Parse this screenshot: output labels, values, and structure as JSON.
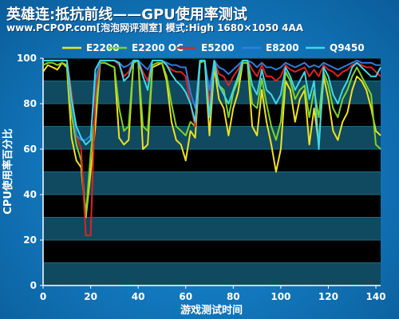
{
  "header": {
    "title": "英雄连:抵抗前线——GPU使用率测试",
    "subtitle": "www.PCPOP.com[泡泡网评测室] 模式:High 1680×1050 4AA"
  },
  "chart_data": {
    "type": "line",
    "xlabel": "游戏测试时间",
    "ylabel": "CPU使用率百分比",
    "xlim": [
      0,
      142
    ],
    "ylim": [
      0,
      100
    ],
    "xticks": [
      0,
      20,
      40,
      60,
      80,
      100,
      120,
      140
    ],
    "yticks": [
      0,
      20,
      40,
      60,
      80,
      100
    ],
    "grid": "horizontal",
    "legend_position": "top",
    "series": [
      {
        "name": "E2200",
        "color": "#f2e020",
        "x": [
          0,
          2,
          4,
          6,
          8,
          10,
          12,
          14,
          16,
          18,
          20,
          22,
          24,
          26,
          28,
          30,
          32,
          34,
          36,
          38,
          40,
          42,
          44,
          46,
          48,
          50,
          52,
          54,
          56,
          58,
          60,
          62,
          64,
          66,
          68,
          70,
          72,
          74,
          76,
          78,
          80,
          82,
          84,
          86,
          88,
          90,
          92,
          94,
          96,
          98,
          100,
          102,
          104,
          106,
          108,
          110,
          112,
          114,
          116,
          118,
          120,
          122,
          124,
          126,
          128,
          130,
          132,
          134,
          136,
          138,
          140,
          142
        ],
        "y": [
          94,
          97,
          96,
          95,
          98,
          96,
          65,
          55,
          52,
          30,
          50,
          70,
          98,
          98,
          97,
          96,
          65,
          62,
          64,
          98,
          99,
          60,
          62,
          96,
          97,
          98,
          90,
          72,
          64,
          62,
          55,
          68,
          65,
          98,
          99,
          66,
          96,
          82,
          78,
          66,
          78,
          85,
          98,
          98,
          70,
          66,
          86,
          72,
          62,
          50,
          60,
          90,
          86,
          72,
          82,
          86,
          62,
          78,
          62,
          92,
          82,
          68,
          64,
          72,
          76,
          86,
          92,
          90,
          86,
          78,
          68,
          66
        ]
      },
      {
        "name": "E2200 OC",
        "color": "#7fd426",
        "x": [
          0,
          2,
          4,
          6,
          8,
          10,
          12,
          14,
          16,
          18,
          20,
          22,
          24,
          26,
          28,
          30,
          32,
          34,
          36,
          38,
          40,
          42,
          44,
          46,
          48,
          50,
          52,
          54,
          56,
          58,
          60,
          62,
          64,
          66,
          68,
          70,
          72,
          74,
          76,
          78,
          80,
          82,
          84,
          86,
          88,
          90,
          92,
          94,
          96,
          98,
          100,
          102,
          104,
          106,
          108,
          110,
          112,
          114,
          116,
          118,
          120,
          122,
          124,
          126,
          128,
          130,
          132,
          134,
          136,
          138,
          140,
          142
        ],
        "y": [
          97,
          98,
          98,
          97,
          98,
          97,
          75,
          62,
          55,
          31,
          58,
          76,
          98,
          98,
          97,
          96,
          78,
          68,
          70,
          98,
          99,
          70,
          68,
          97,
          98,
          98,
          92,
          80,
          70,
          68,
          66,
          72,
          70,
          98,
          99,
          74,
          97,
          88,
          86,
          74,
          85,
          90,
          98,
          98,
          80,
          78,
          91,
          80,
          70,
          64,
          72,
          94,
          90,
          82,
          86,
          88,
          74,
          86,
          74,
          94,
          88,
          78,
          74,
          82,
          86,
          92,
          96,
          92,
          88,
          84,
          62,
          60
        ]
      },
      {
        "name": "E5200",
        "color": "#e02222",
        "x": [
          0,
          2,
          4,
          6,
          8,
          10,
          12,
          14,
          16,
          18,
          20,
          22,
          24,
          26,
          28,
          30,
          32,
          34,
          36,
          38,
          40,
          42,
          44,
          46,
          48,
          50,
          52,
          54,
          56,
          58,
          60,
          62,
          64,
          66,
          68,
          70,
          72,
          74,
          76,
          78,
          80,
          82,
          84,
          86,
          88,
          90,
          92,
          94,
          96,
          98,
          100,
          102,
          104,
          106,
          108,
          110,
          112,
          114,
          116,
          118,
          120,
          122,
          124,
          126,
          128,
          130,
          132,
          134,
          136,
          138,
          140,
          142
        ],
        "y": [
          99,
          99,
          99,
          99,
          99,
          99,
          85,
          66,
          60,
          22,
          22,
          84,
          99,
          99,
          99,
          99,
          97,
          92,
          94,
          99,
          99,
          94,
          90,
          99,
          99,
          99,
          97,
          95,
          94,
          94,
          92,
          80,
          70,
          99,
          99,
          80,
          99,
          93,
          92,
          88,
          92,
          95,
          99,
          99,
          95,
          92,
          97,
          92,
          92,
          90,
          92,
          97,
          95,
          94,
          95,
          96,
          92,
          95,
          92,
          97,
          95,
          94,
          92,
          94,
          95,
          97,
          98,
          97,
          96,
          96,
          94,
          92
        ]
      },
      {
        "name": "E8200",
        "color": "#2e7fe0",
        "x": [
          0,
          2,
          4,
          6,
          8,
          10,
          12,
          14,
          16,
          18,
          20,
          22,
          24,
          26,
          28,
          30,
          32,
          34,
          36,
          38,
          40,
          42,
          44,
          46,
          48,
          50,
          52,
          54,
          56,
          58,
          60,
          62,
          64,
          66,
          68,
          70,
          72,
          74,
          76,
          78,
          80,
          82,
          84,
          86,
          88,
          90,
          92,
          94,
          96,
          98,
          100,
          102,
          104,
          106,
          108,
          110,
          112,
          114,
          116,
          118,
          120,
          122,
          124,
          126,
          128,
          130,
          132,
          134,
          136,
          138,
          140,
          142
        ],
        "y": [
          99,
          99,
          99,
          99,
          99,
          99,
          80,
          66,
          64,
          64,
          66,
          90,
          99,
          99,
          99,
          99,
          98,
          96,
          97,
          99,
          99,
          97,
          95,
          99,
          99,
          99,
          98,
          97,
          97,
          96,
          96,
          85,
          78,
          99,
          99,
          86,
          99,
          96,
          95,
          93,
          95,
          97,
          99,
          99,
          98,
          96,
          98,
          96,
          96,
          95,
          96,
          98,
          97,
          96,
          97,
          98,
          96,
          97,
          96,
          98,
          97,
          96,
          95,
          96,
          97,
          98,
          99,
          98,
          98,
          98,
          97,
          97
        ]
      },
      {
        "name": "Q9450",
        "color": "#3fd8e8",
        "x": [
          0,
          2,
          4,
          6,
          8,
          10,
          12,
          14,
          16,
          18,
          20,
          22,
          24,
          26,
          28,
          30,
          32,
          34,
          36,
          38,
          40,
          42,
          44,
          46,
          48,
          50,
          52,
          54,
          56,
          58,
          60,
          62,
          64,
          66,
          68,
          70,
          72,
          74,
          76,
          78,
          80,
          82,
          84,
          86,
          88,
          90,
          92,
          94,
          96,
          98,
          100,
          102,
          104,
          106,
          108,
          110,
          112,
          114,
          116,
          118,
          120,
          122,
          124,
          126,
          128,
          130,
          132,
          134,
          136,
          138,
          140,
          142
        ],
        "y": [
          99,
          99,
          99,
          99,
          99,
          99,
          82,
          70,
          65,
          62,
          64,
          95,
          99,
          99,
          99,
          99,
          98,
          90,
          92,
          99,
          99,
          92,
          86,
          99,
          99,
          99,
          97,
          93,
          90,
          88,
          85,
          80,
          72,
          99,
          99,
          74,
          99,
          88,
          84,
          80,
          86,
          92,
          99,
          99,
          88,
          84,
          95,
          86,
          84,
          80,
          84,
          96,
          92,
          86,
          90,
          94,
          82,
          90,
          60,
          96,
          92,
          84,
          80,
          86,
          90,
          96,
          98,
          96,
          94,
          92,
          92,
          96
        ]
      }
    ]
  }
}
